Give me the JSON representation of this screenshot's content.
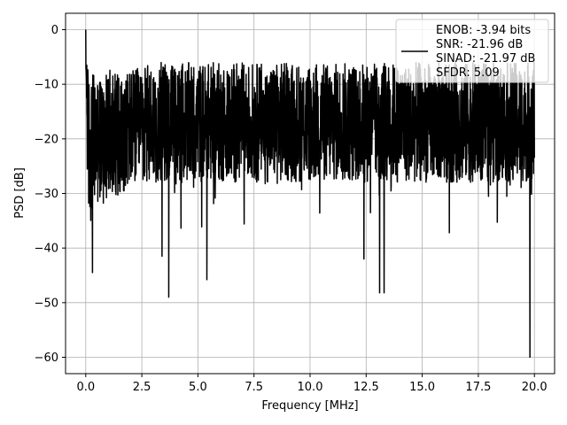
{
  "chart_data": {
    "type": "line",
    "xlabel": "Frequency [MHz]",
    "ylabel": "PSD [dB]",
    "xlim": [
      -0.9,
      20.9
    ],
    "ylim": [
      -63,
      3
    ],
    "xticks": [
      0.0,
      2.5,
      5.0,
      7.5,
      10.0,
      12.5,
      15.0,
      17.5,
      20.0
    ],
    "xtick_labels": [
      "0.0",
      "2.5",
      "5.0",
      "7.5",
      "10.0",
      "12.5",
      "15.0",
      "17.5",
      "20.0"
    ],
    "yticks": [
      0,
      -10,
      -20,
      -30,
      -40,
      -50,
      -60
    ],
    "ytick_labels": [
      "0",
      "−10",
      "−20",
      "−30",
      "−40",
      "−50",
      "−60"
    ],
    "grid": true,
    "legend_placement": "upper-right",
    "legend_lines": [
      "ENOB: -3.94 bits",
      "SNR: -21.96 dB",
      "SINAD: -21.97 dB",
      "SFDR: 5.09"
    ],
    "series_color": "#000000",
    "series": [
      {
        "x": [
          0.0,
          0.03,
          0.08,
          0.15,
          0.3,
          0.5,
          0.7,
          1.0,
          1.5,
          2.0,
          2.5,
          3.0,
          3.5,
          4.0,
          4.5,
          5.0,
          5.5,
          6.0,
          6.5,
          7.0,
          7.5,
          8.0,
          8.5,
          9.0,
          9.5,
          10.0,
          10.5,
          11.0,
          11.5,
          12.0,
          12.5,
          13.0,
          13.5,
          14.0,
          14.5,
          15.0,
          15.5,
          16.0,
          16.5,
          17.0,
          17.5,
          18.0,
          18.5,
          19.0,
          19.5,
          20.0
        ],
        "y_center": [
          0,
          -8,
          -18,
          -22,
          -21,
          -20,
          -20,
          -19,
          -19,
          -18,
          -18,
          -17,
          -17,
          -17,
          -17,
          -17,
          -17,
          -17,
          -17,
          -17,
          -17,
          -17,
          -17,
          -17,
          -17,
          -17,
          -17,
          -17,
          -17,
          -17,
          -17,
          -17,
          -17,
          -17,
          -17,
          -17,
          -17,
          -17,
          -17,
          -17,
          -17,
          -17,
          -17,
          -17,
          -17,
          -17
        ],
        "y_spread": [
          0,
          6,
          12,
          14,
          13,
          12,
          12,
          12,
          11,
          11,
          11,
          11,
          11,
          11,
          11,
          11,
          11,
          11,
          11,
          11,
          11,
          11,
          11,
          11,
          11,
          11,
          11,
          11,
          11,
          11,
          11,
          11,
          11,
          11,
          11,
          11,
          11,
          11,
          11,
          11,
          11,
          11,
          11,
          11,
          11,
          11
        ]
      }
    ],
    "deep_dips": [
      {
        "x": 0.3,
        "y": -44.5
      },
      {
        "x": 3.7,
        "y": -49
      },
      {
        "x": 5.4,
        "y": -45.8
      },
      {
        "x": 3.4,
        "y": -41.5
      },
      {
        "x": 12.4,
        "y": -42
      },
      {
        "x": 13.1,
        "y": -48.2
      },
      {
        "x": 13.3,
        "y": -48.2
      },
      {
        "x": 19.8,
        "y": -60
      }
    ]
  }
}
